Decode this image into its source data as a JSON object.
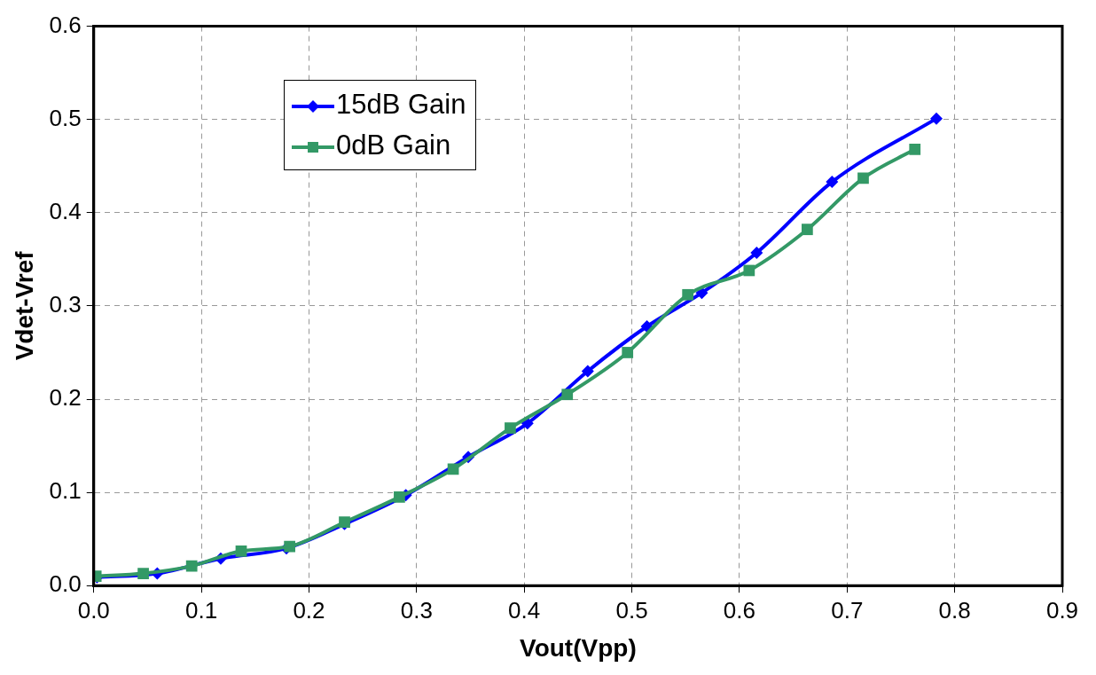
{
  "chart_data": {
    "type": "line",
    "xlabel": "Vout(Vpp)",
    "ylabel": "Vdet-Vref",
    "xlim": [
      0,
      0.9
    ],
    "ylim": [
      0,
      0.6
    ],
    "xticks": [
      {
        "value": 0,
        "label": "0.0"
      },
      0.1,
      0.2,
      0.3,
      0.4,
      0.5,
      0.6,
      0.7,
      0.8,
      0.9
    ],
    "yticks": [
      {
        "value": 0,
        "label": "0.0"
      },
      0.1,
      0.2,
      0.3,
      0.4,
      0.5,
      0.6
    ],
    "grid": true,
    "legend": "top left",
    "line_style": "solid",
    "series": [
      {
        "name": "15dB Gain",
        "color": "#0000ff",
        "marker": "diamond",
        "x": [
          0.003,
          0.059,
          0.118,
          0.179,
          0.233,
          0.29,
          0.348,
          0.403,
          0.459,
          0.514,
          0.565,
          0.616,
          0.686,
          0.783
        ],
        "values": [
          0.009,
          0.013,
          0.029,
          0.04,
          0.066,
          0.097,
          0.138,
          0.174,
          0.23,
          0.278,
          0.314,
          0.357,
          0.433,
          0.501
        ]
      },
      {
        "name": "0dB Gain",
        "color": "#339966",
        "marker": "square",
        "x": [
          0.002,
          0.046,
          0.091,
          0.137,
          0.182,
          0.233,
          0.284,
          0.334,
          0.387,
          0.44,
          0.496,
          0.552,
          0.609,
          0.663,
          0.715,
          0.763
        ],
        "values": [
          0.01,
          0.013,
          0.021,
          0.037,
          0.042,
          0.068,
          0.095,
          0.125,
          0.169,
          0.205,
          0.25,
          0.312,
          0.338,
          0.382,
          0.437,
          0.468
        ]
      }
    ]
  }
}
